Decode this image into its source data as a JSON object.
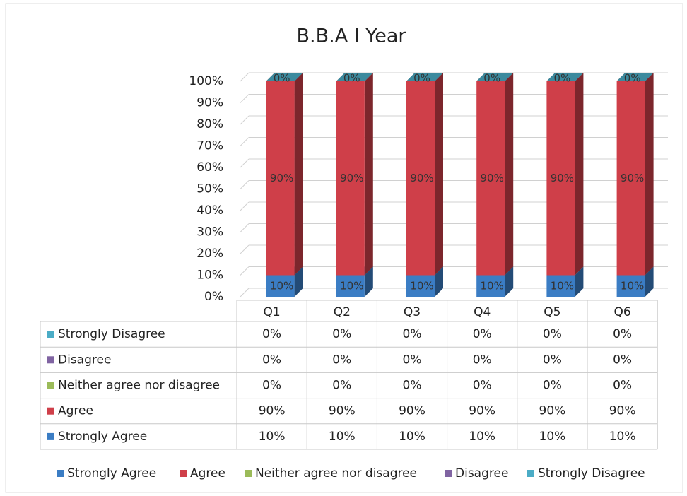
{
  "chart_data": {
    "type": "bar",
    "stacked": true,
    "title": "B.B.A I Year",
    "categories": [
      "Q1",
      "Q2",
      "Q3",
      "Q4",
      "Q5",
      "Q6"
    ],
    "series": [
      {
        "name": "Strongly Agree",
        "color": "#3b7dc4",
        "values": [
          10,
          10,
          10,
          10,
          10,
          10
        ],
        "value_labels": [
          "10%",
          "10%",
          "10%",
          "10%",
          "10%",
          "10%"
        ]
      },
      {
        "name": "Agree",
        "color": "#cf3f49",
        "values": [
          90,
          90,
          90,
          90,
          90,
          90
        ],
        "value_labels": [
          "90%",
          "90%",
          "90%",
          "90%",
          "90%",
          "90%"
        ]
      },
      {
        "name": "Neither agree nor disagree",
        "color": "#9bbb59",
        "values": [
          0,
          0,
          0,
          0,
          0,
          0
        ],
        "value_labels": [
          "0%",
          "0%",
          "0%",
          "0%",
          "0%",
          "0%"
        ]
      },
      {
        "name": "Disagree",
        "color": "#8064a2",
        "values": [
          0,
          0,
          0,
          0,
          0,
          0
        ],
        "value_labels": [
          "0%",
          "0%",
          "0%",
          "0%",
          "0%",
          "0%"
        ]
      },
      {
        "name": "Strongly Disagree",
        "color": "#4bacc6",
        "values": [
          0,
          0,
          0,
          0,
          0,
          0
        ],
        "value_labels": [
          "0%",
          "0%",
          "0%",
          "0%",
          "0%",
          "0%"
        ]
      }
    ],
    "ylim": [
      0,
      100
    ],
    "yticks": [
      {
        "value": 0,
        "label": "0%"
      },
      {
        "value": 10,
        "label": "10%"
      },
      {
        "value": 20,
        "label": "20%"
      },
      {
        "value": 30,
        "label": "30%"
      },
      {
        "value": 40,
        "label": "40%"
      },
      {
        "value": 50,
        "label": "50%"
      },
      {
        "value": 60,
        "label": "60%"
      },
      {
        "value": 70,
        "label": "70%"
      },
      {
        "value": 80,
        "label": "80%"
      },
      {
        "value": 90,
        "label": "90%"
      },
      {
        "value": 100,
        "label": "100%"
      }
    ],
    "grid": true,
    "data_table": true,
    "legend": "bottom"
  }
}
